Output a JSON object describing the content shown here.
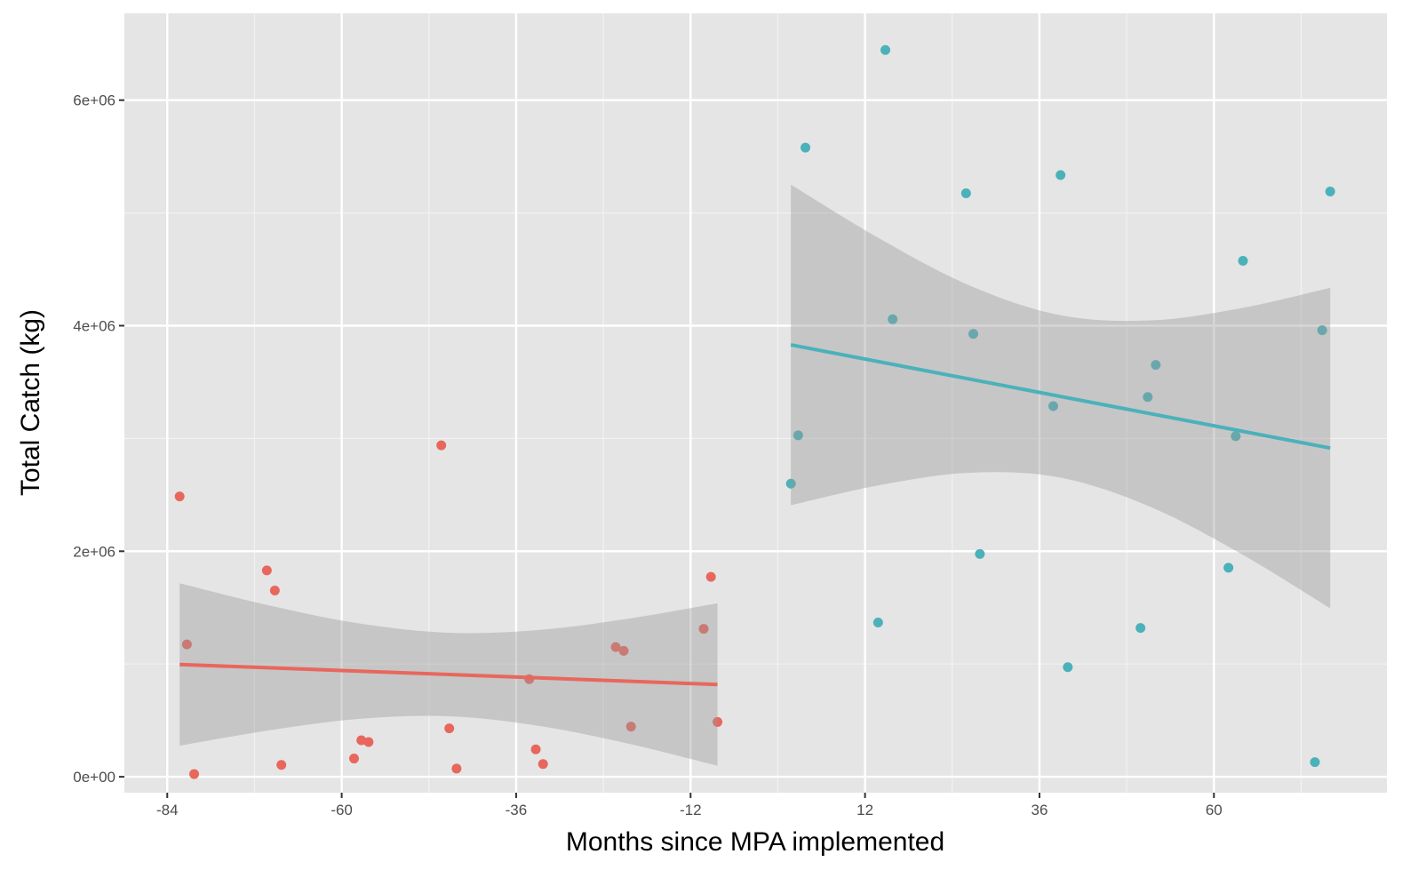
{
  "chart_data": {
    "type": "scatter",
    "title": "",
    "xlabel": "Months since MPA implemented",
    "ylabel": "Total Catch (kg)",
    "xlim": [
      -89.9,
      83.8
    ],
    "ylim": [
      -141000,
      6770000
    ],
    "x_ticks": [
      -84,
      -60,
      -36,
      -12,
      12,
      36,
      60
    ],
    "x_tick_labels": [
      "-84",
      "-60",
      "-36",
      "-12",
      "12",
      "36",
      "60"
    ],
    "y_ticks": [
      0,
      2000000,
      4000000,
      6000000
    ],
    "y_tick_labels": [
      "0e+00",
      "2e+06",
      "4e+06",
      "6e+06"
    ],
    "grid": true,
    "legend": "none",
    "background": "#e5e5e5",
    "series": [
      {
        "color": "#e8675d",
        "points": [
          [
            -82.3,
            2486000
          ],
          [
            -81.3,
            1174000
          ],
          [
            -80.3,
            24000
          ],
          [
            -70.3,
            1830000
          ],
          [
            -69.2,
            1652000
          ],
          [
            -68.3,
            105000
          ],
          [
            -58.3,
            162000
          ],
          [
            -57.3,
            324000
          ],
          [
            -56.3,
            308000
          ],
          [
            -46.3,
            2939000
          ],
          [
            -45.2,
            429000
          ],
          [
            -44.2,
            73000
          ],
          [
            -34.2,
            866000
          ],
          [
            -33.3,
            243000
          ],
          [
            -32.3,
            113000
          ],
          [
            -22.3,
            1150000
          ],
          [
            -21.2,
            1117000
          ],
          [
            -20.2,
            445000
          ],
          [
            -10.2,
            1312000
          ],
          [
            -9.2,
            1773000
          ],
          [
            -8.3,
            486000
          ]
        ],
        "fit_line": [
          [
            -82.3,
            996000
          ],
          [
            -8.3,
            818000
          ]
        ],
        "confidence_band": [
          [
            -82.3,
            276000,
            1716000
          ],
          [
            -70,
            412000,
            1520000
          ],
          [
            -57.7,
            513000,
            1361000
          ],
          [
            -45.3,
            537000,
            1277000
          ],
          [
            -33,
            453000,
            1301000
          ],
          [
            -20.6,
            294000,
            1402000
          ],
          [
            -8.3,
            98000,
            1538000
          ]
        ]
      },
      {
        "color": "#4bb1ba",
        "points": [
          [
            1.8,
            2599000
          ],
          [
            2.8,
            3028000
          ],
          [
            3.8,
            5579000
          ],
          [
            13.8,
            1368000
          ],
          [
            14.8,
            6445000
          ],
          [
            15.8,
            4057000
          ],
          [
            25.9,
            5174000
          ],
          [
            26.9,
            3927000
          ],
          [
            27.8,
            1976000
          ],
          [
            37.9,
            3287000
          ],
          [
            38.9,
            5336000
          ],
          [
            39.9,
            972000
          ],
          [
            49.9,
            1320000
          ],
          [
            50.9,
            3368000
          ],
          [
            52.0,
            3652000
          ],
          [
            62.0,
            1854000
          ],
          [
            63.0,
            3020000
          ],
          [
            64.0,
            4575000
          ],
          [
            73.9,
            130000
          ],
          [
            74.9,
            3960000
          ],
          [
            76.0,
            5190000
          ]
        ],
        "fit_line": [
          [
            1.8,
            3830000
          ],
          [
            76.0,
            2915000
          ]
        ],
        "confidence_band": [
          [
            1.8,
            2409000,
            5251000
          ],
          [
            14.2,
            2589000,
            4765000
          ],
          [
            26.6,
            2697000,
            4351000
          ],
          [
            38.9,
            2653000,
            4093000
          ],
          [
            51.3,
            2393000,
            4047000
          ],
          [
            63.7,
            1979000,
            4155000
          ],
          [
            76.0,
            1494000,
            4336000
          ]
        ]
      }
    ]
  }
}
